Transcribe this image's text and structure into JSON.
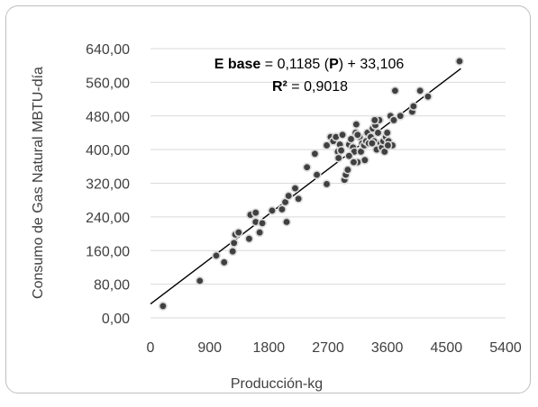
{
  "chart_data": {
    "type": "scatter",
    "title": "",
    "xlabel": "Producción-kg",
    "ylabel": "Consumo de Gas Natural MBTU-día",
    "xlim": [
      0,
      5400
    ],
    "ylim": [
      0,
      640
    ],
    "x_ticks": [
      "0",
      "900",
      "1800",
      "2700",
      "3600",
      "4500",
      "5400"
    ],
    "y_ticks": [
      "0,00",
      "80,00",
      "160,00",
      "240,00",
      "320,00",
      "400,00",
      "480,00",
      "560,00",
      "640,00"
    ],
    "grid": "horizontal",
    "legend": "none",
    "marker_color": "#404040",
    "marker_edge": "#d9d9d9",
    "trendline": {
      "slope": 0.1185,
      "intercept": 33.106,
      "equation_label_bold": "E base",
      "equation_label_rest_1": " = 0,1185 (",
      "equation_label_var": "P",
      "equation_label_rest_2": ") + 33,106",
      "r2_label_bold": "R²",
      "r2_label_rest": " = 0,9018"
    },
    "points": [
      [
        190,
        28
      ],
      [
        750,
        88
      ],
      [
        1000,
        148
      ],
      [
        1120,
        132
      ],
      [
        1250,
        158
      ],
      [
        1270,
        178
      ],
      [
        1290,
        198
      ],
      [
        1340,
        203
      ],
      [
        1500,
        188
      ],
      [
        1520,
        245
      ],
      [
        1600,
        250
      ],
      [
        1600,
        228
      ],
      [
        1660,
        203
      ],
      [
        1700,
        225
      ],
      [
        1850,
        255
      ],
      [
        2000,
        258
      ],
      [
        2050,
        275
      ],
      [
        2070,
        228
      ],
      [
        2100,
        290
      ],
      [
        2200,
        308
      ],
      [
        2250,
        283
      ],
      [
        2380,
        358
      ],
      [
        2500,
        390
      ],
      [
        2530,
        340
      ],
      [
        2680,
        318
      ],
      [
        2680,
        410
      ],
      [
        2740,
        430
      ],
      [
        2780,
        420
      ],
      [
        2820,
        430
      ],
      [
        2850,
        395
      ],
      [
        2880,
        412
      ],
      [
        2900,
        398
      ],
      [
        2920,
        435
      ],
      [
        2950,
        328
      ],
      [
        2970,
        340
      ],
      [
        3000,
        352
      ],
      [
        3020,
        412
      ],
      [
        3050,
        425
      ],
      [
        3080,
        405
      ],
      [
        3100,
        395
      ],
      [
        3120,
        440
      ],
      [
        3130,
        460
      ],
      [
        3150,
        370
      ],
      [
        3180,
        430
      ],
      [
        3200,
        395
      ],
      [
        3220,
        415
      ],
      [
        3250,
        410
      ],
      [
        3280,
        420
      ],
      [
        3300,
        440
      ],
      [
        3320,
        415
      ],
      [
        3350,
        430
      ],
      [
        3380,
        450
      ],
      [
        3400,
        420
      ],
      [
        3420,
        458
      ],
      [
        3440,
        400
      ],
      [
        3460,
        440
      ],
      [
        3480,
        470
      ],
      [
        3500,
        415
      ],
      [
        3520,
        405
      ],
      [
        3540,
        420
      ],
      [
        3560,
        395
      ],
      [
        3580,
        430
      ],
      [
        3600,
        440
      ],
      [
        3620,
        420
      ],
      [
        3650,
        480
      ],
      [
        3680,
        410
      ],
      [
        3700,
        470
      ],
      [
        3720,
        540
      ],
      [
        3800,
        480
      ],
      [
        3980,
        490
      ],
      [
        4000,
        503
      ],
      [
        4100,
        540
      ],
      [
        4220,
        526
      ],
      [
        4700,
        610
      ],
      [
        3150,
        435
      ],
      [
        3260,
        375
      ],
      [
        3020,
        385
      ],
      [
        3370,
        415
      ],
      [
        3090,
        370
      ],
      [
        3610,
        410
      ],
      [
        3410,
        470
      ],
      [
        2860,
        380
      ]
    ]
  }
}
